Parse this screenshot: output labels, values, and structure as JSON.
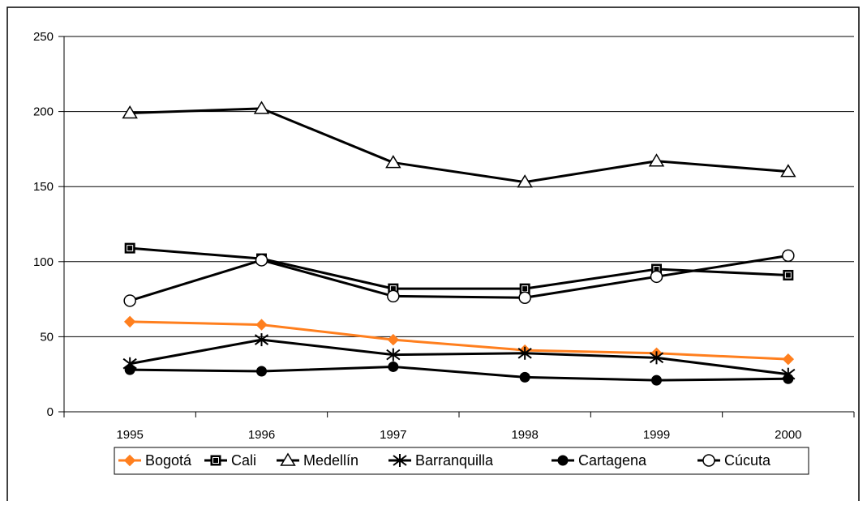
{
  "chart_data": {
    "type": "line",
    "x": [
      "1995",
      "1996",
      "1997",
      "1998",
      "1999",
      "2000"
    ],
    "ylim": [
      0,
      250
    ],
    "yticks": [
      0,
      50,
      100,
      150,
      200,
      250
    ],
    "grid": "horizontal",
    "legend": "bottom",
    "series": [
      {
        "name": "Bogotá",
        "values": [
          60,
          58,
          48,
          41,
          39,
          35
        ],
        "marker": "diamond",
        "color": "#FF7F1E"
      },
      {
        "name": "Cali",
        "values": [
          109,
          102,
          82,
          82,
          95,
          91
        ],
        "marker": "square",
        "color": "#000000"
      },
      {
        "name": "Medellín",
        "values": [
          199,
          202,
          166,
          153,
          167,
          160
        ],
        "marker": "triangle",
        "color": "#000000"
      },
      {
        "name": "Barranquilla",
        "values": [
          32,
          48,
          38,
          39,
          36,
          25
        ],
        "marker": "star",
        "color": "#000000"
      },
      {
        "name": "Cartagena",
        "values": [
          28,
          27,
          30,
          23,
          21,
          22
        ],
        "marker": "dot",
        "color": "#000000"
      },
      {
        "name": "Cúcuta",
        "values": [
          74,
          101,
          77,
          76,
          90,
          104
        ],
        "marker": "circle",
        "color": "#000000"
      }
    ]
  }
}
